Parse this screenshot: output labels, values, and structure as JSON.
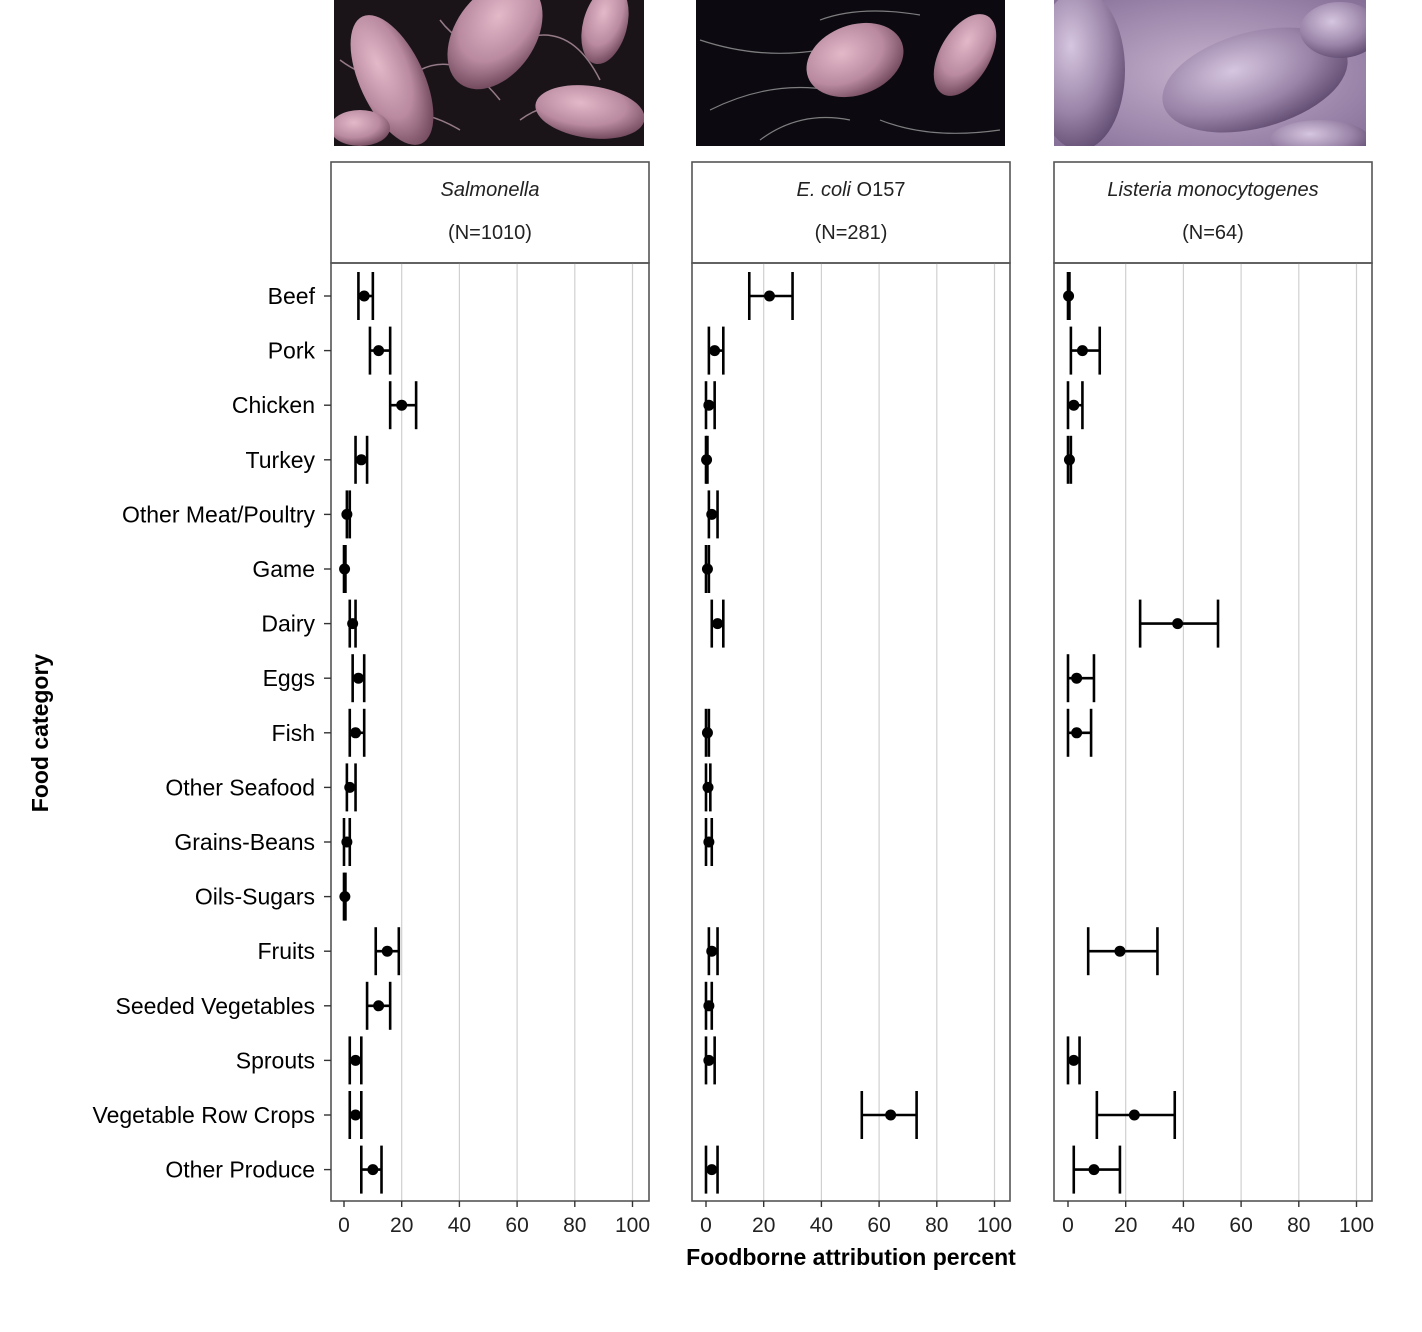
{
  "chart_data": {
    "type": "scatter",
    "subtype": "point-with-error-bars (faceted)",
    "ylabel": "Food category",
    "xlabel": "Foodborne attribution percent",
    "xlim": [
      0,
      100
    ],
    "x_ticks": [
      0,
      20,
      40,
      60,
      80,
      100
    ],
    "grid": "vertical major gridlines",
    "categories": [
      "Beef",
      "Pork",
      "Chicken",
      "Turkey",
      "Other Meat/Poultry",
      "Game",
      "Dairy",
      "Eggs",
      "Fish",
      "Other Seafood",
      "Grains-Beans",
      "Oils-Sugars",
      "Fruits",
      "Seeded Vegetables",
      "Sprouts",
      "Vegetable Row Crops",
      "Other Produce"
    ],
    "panels": [
      {
        "name_italic": "Salmonella",
        "name_plain": "",
        "n_label": "(N=1010)",
        "image_icon": "salmonella-bacteria-image",
        "points": [
          {
            "category": "Beef",
            "estimate": 7,
            "lower": 5,
            "upper": 10
          },
          {
            "category": "Pork",
            "estimate": 12,
            "lower": 9,
            "upper": 16
          },
          {
            "category": "Chicken",
            "estimate": 20,
            "lower": 16,
            "upper": 25
          },
          {
            "category": "Turkey",
            "estimate": 6,
            "lower": 4,
            "upper": 8
          },
          {
            "category": "Other Meat/Poultry",
            "estimate": 1,
            "lower": 1,
            "upper": 2
          },
          {
            "category": "Game",
            "estimate": 0.2,
            "lower": 0,
            "upper": 0.5
          },
          {
            "category": "Dairy",
            "estimate": 3,
            "lower": 2,
            "upper": 4
          },
          {
            "category": "Eggs",
            "estimate": 5,
            "lower": 3,
            "upper": 7
          },
          {
            "category": "Fish",
            "estimate": 4,
            "lower": 2,
            "upper": 7
          },
          {
            "category": "Other Seafood",
            "estimate": 2,
            "lower": 1,
            "upper": 4
          },
          {
            "category": "Grains-Beans",
            "estimate": 1,
            "lower": 0,
            "upper": 2
          },
          {
            "category": "Oils-Sugars",
            "estimate": 0.3,
            "lower": 0,
            "upper": 0.5
          },
          {
            "category": "Fruits",
            "estimate": 15,
            "lower": 11,
            "upper": 19
          },
          {
            "category": "Seeded Vegetables",
            "estimate": 12,
            "lower": 8,
            "upper": 16
          },
          {
            "category": "Sprouts",
            "estimate": 4,
            "lower": 2,
            "upper": 6
          },
          {
            "category": "Vegetable Row Crops",
            "estimate": 4,
            "lower": 2,
            "upper": 6
          },
          {
            "category": "Other Produce",
            "estimate": 10,
            "lower": 6,
            "upper": 13
          }
        ]
      },
      {
        "name_italic": "E. coli",
        "name_plain": " O157",
        "n_label": "(N=281)",
        "image_icon": "ecoli-bacteria-image",
        "points": [
          {
            "category": "Beef",
            "estimate": 22,
            "lower": 15,
            "upper": 30
          },
          {
            "category": "Pork",
            "estimate": 3,
            "lower": 1,
            "upper": 6
          },
          {
            "category": "Chicken",
            "estimate": 1,
            "lower": 0,
            "upper": 3
          },
          {
            "category": "Turkey",
            "estimate": 0.2,
            "lower": 0,
            "upper": 0.5
          },
          {
            "category": "Other Meat/Poultry",
            "estimate": 2,
            "lower": 1,
            "upper": 4
          },
          {
            "category": "Game",
            "estimate": 0.5,
            "lower": 0,
            "upper": 1
          },
          {
            "category": "Dairy",
            "estimate": 4,
            "lower": 2,
            "upper": 6
          },
          {
            "category": "Fish",
            "estimate": 0.5,
            "lower": 0,
            "upper": 1
          },
          {
            "category": "Other Seafood",
            "estimate": 0.7,
            "lower": 0,
            "upper": 1.5
          },
          {
            "category": "Grains-Beans",
            "estimate": 1,
            "lower": 0,
            "upper": 2
          },
          {
            "category": "Fruits",
            "estimate": 2,
            "lower": 1,
            "upper": 4
          },
          {
            "category": "Seeded Vegetables",
            "estimate": 1,
            "lower": 0,
            "upper": 2
          },
          {
            "category": "Sprouts",
            "estimate": 1,
            "lower": 0,
            "upper": 3
          },
          {
            "category": "Vegetable Row Crops",
            "estimate": 64,
            "lower": 54,
            "upper": 73
          },
          {
            "category": "Other Produce",
            "estimate": 2,
            "lower": 0,
            "upper": 4
          }
        ]
      },
      {
        "name_italic": "Listeria monocytogenes",
        "name_plain": "",
        "n_label": "(N=64)",
        "image_icon": "listeria-bacteria-image",
        "points": [
          {
            "category": "Beef",
            "estimate": 0.2,
            "lower": 0,
            "upper": 0.5
          },
          {
            "category": "Pork",
            "estimate": 5,
            "lower": 1,
            "upper": 11
          },
          {
            "category": "Chicken",
            "estimate": 2,
            "lower": 0,
            "upper": 5
          },
          {
            "category": "Turkey",
            "estimate": 0.5,
            "lower": 0,
            "upper": 1
          },
          {
            "category": "Dairy",
            "estimate": 38,
            "lower": 25,
            "upper": 52
          },
          {
            "category": "Eggs",
            "estimate": 3,
            "lower": 0,
            "upper": 9
          },
          {
            "category": "Fish",
            "estimate": 3,
            "lower": 0,
            "upper": 8
          },
          {
            "category": "Fruits",
            "estimate": 18,
            "lower": 7,
            "upper": 31
          },
          {
            "category": "Sprouts",
            "estimate": 2,
            "lower": 0,
            "upper": 4
          },
          {
            "category": "Vegetable Row Crops",
            "estimate": 23,
            "lower": 10,
            "upper": 37
          },
          {
            "category": "Other Produce",
            "estimate": 9,
            "lower": 2,
            "upper": 18
          }
        ]
      }
    ]
  },
  "colors": {
    "point": "#000000",
    "panel_border": "#555555",
    "gridline": "#d0d0d0",
    "strip_background": "#ffffff",
    "image_dark": "#0c0a10",
    "bacteria_pink": "#b98aa0",
    "bacteria_purple": "#9a84a8"
  }
}
